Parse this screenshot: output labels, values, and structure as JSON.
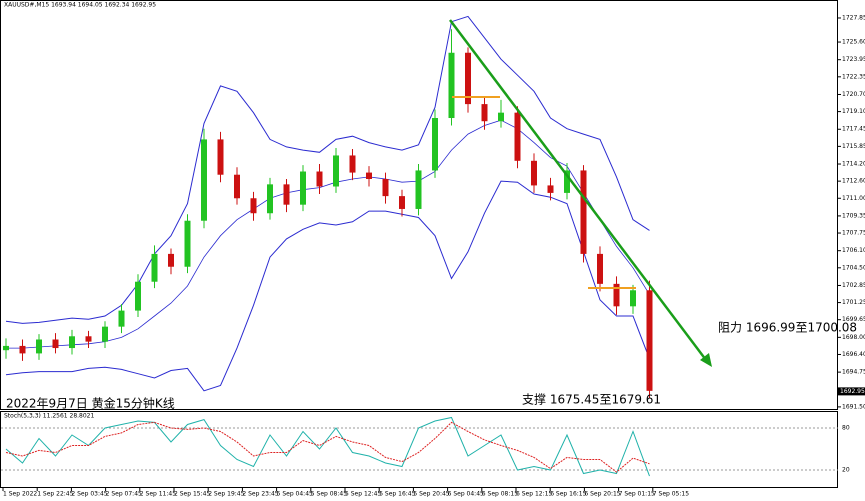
{
  "chart_data": {
    "type": "candlestick",
    "header": "XAUUSD#,M15  1693.94 1694.05 1692.34 1692.95",
    "caption": "2022年9月7日 黄金15分钟K线",
    "resistance": "阻力 1696.99至1700.08",
    "support": "支撑 1675.45至1679.61",
    "x_labels": [
      "1 Sep 2022",
      "1 Sep 22:45",
      "2 Sep 03:45",
      "2 Sep 07:45",
      "2 Sep 11:45",
      "2 Sep 15:45",
      "2 Sep 19:45",
      "2 Sep 23:45",
      "5 Sep 04:45",
      "5 Sep 08:45",
      "5 Sep 12:45",
      "5 Sep 16:45",
      "5 Sep 20:45",
      "6 Sep 04:45",
      "6 Sep 08:15",
      "6 Sep 12:15",
      "6 Sep 16:15",
      "6 Sep 20:15",
      "7 Sep 01:15",
      "7 Sep 05:15"
    ],
    "open": [
      1696.8,
      1697.2,
      1696.5,
      1697.8,
      1697.0,
      1698.1,
      1697.6,
      1699.0,
      1700.5,
      1703.2,
      1705.8,
      1704.6,
      1708.9,
      1716.5,
      1713.2,
      1711.0,
      1709.6,
      1712.3,
      1710.4,
      1713.5,
      1712.1,
      1715.0,
      1713.4,
      1712.8,
      1711.2,
      1710.0,
      1713.6,
      1718.5,
      1724.6,
      1719.8,
      1718.2,
      1719.0,
      1714.5,
      1712.2,
      1711.5,
      1713.6,
      1705.8,
      1703.0,
      1700.9,
      1702.4
    ],
    "high": [
      1697.9,
      1697.8,
      1698.3,
      1698.4,
      1698.7,
      1698.6,
      1699.5,
      1701.1,
      1703.9,
      1706.6,
      1706.3,
      1709.5,
      1717.5,
      1717.2,
      1713.9,
      1711.6,
      1712.9,
      1712.8,
      1714.1,
      1714.2,
      1715.7,
      1715.6,
      1714.0,
      1713.4,
      1711.8,
      1714.2,
      1719.3,
      1726.8,
      1725.1,
      1720.5,
      1720.2,
      1719.6,
      1715.2,
      1712.9,
      1714.3,
      1714.1,
      1706.5,
      1703.7,
      1702.9,
      1703.3
    ],
    "low": [
      1696.0,
      1695.8,
      1695.9,
      1696.5,
      1696.4,
      1697.0,
      1697.0,
      1698.4,
      1699.9,
      1702.6,
      1703.9,
      1704.0,
      1708.2,
      1712.5,
      1710.4,
      1708.9,
      1709.0,
      1709.7,
      1709.8,
      1711.4,
      1711.5,
      1712.7,
      1712.1,
      1710.5,
      1709.3,
      1709.4,
      1712.9,
      1717.8,
      1719.0,
      1717.4,
      1717.6,
      1713.8,
      1711.5,
      1710.8,
      1710.9,
      1705.0,
      1702.3,
      1700.1,
      1700.2,
      1692.3
    ],
    "close": [
      1697.2,
      1696.5,
      1697.8,
      1697.0,
      1698.1,
      1697.6,
      1699.0,
      1700.5,
      1703.2,
      1705.8,
      1704.6,
      1708.9,
      1716.5,
      1713.2,
      1711.0,
      1709.6,
      1712.3,
      1710.4,
      1713.5,
      1712.1,
      1715.0,
      1713.4,
      1712.8,
      1711.2,
      1710.0,
      1713.6,
      1718.5,
      1724.6,
      1719.8,
      1718.2,
      1719.0,
      1714.5,
      1712.2,
      1711.5,
      1713.6,
      1705.8,
      1703.0,
      1700.9,
      1702.4,
      1693.0
    ],
    "up_color": "#22c322",
    "down_color": "#cc1111",
    "bands": {
      "color": "#2b2bd0",
      "upper": [
        1699.5,
        1699.3,
        1699.4,
        1699.6,
        1699.8,
        1699.7,
        1700.0,
        1701.0,
        1703.0,
        1705.8,
        1707.5,
        1710.5,
        1718.0,
        1721.5,
        1721.0,
        1719.0,
        1716.5,
        1715.8,
        1715.5,
        1715.3,
        1716.5,
        1716.8,
        1716.2,
        1715.8,
        1715.5,
        1716.0,
        1719.5,
        1727.5,
        1728.0,
        1726.0,
        1724.0,
        1722.5,
        1721.0,
        1718.5,
        1717.5,
        1717.0,
        1716.5,
        1713.0,
        1709.0,
        1708.0
      ],
      "middle": [
        1697.0,
        1697.0,
        1697.1,
        1697.2,
        1697.3,
        1697.4,
        1697.6,
        1698.0,
        1698.8,
        1700.0,
        1701.2,
        1702.8,
        1705.5,
        1707.5,
        1709.0,
        1710.0,
        1711.0,
        1711.5,
        1711.8,
        1712.0,
        1712.5,
        1712.8,
        1713.0,
        1712.8,
        1712.5,
        1712.6,
        1713.5,
        1715.5,
        1717.0,
        1717.8,
        1718.3,
        1717.5,
        1716.2,
        1714.8,
        1714.0,
        1711.5,
        1709.0,
        1706.5,
        1704.5,
        1702.0
      ],
      "lower": [
        1694.5,
        1694.7,
        1694.8,
        1694.8,
        1694.8,
        1695.1,
        1695.2,
        1695.0,
        1694.6,
        1694.2,
        1694.9,
        1695.1,
        1693.0,
        1693.5,
        1697.0,
        1701.0,
        1705.5,
        1707.2,
        1708.1,
        1708.7,
        1708.5,
        1708.8,
        1709.8,
        1709.8,
        1709.5,
        1709.2,
        1707.5,
        1703.5,
        1706.0,
        1709.6,
        1712.6,
        1712.5,
        1711.4,
        1711.1,
        1710.5,
        1706.0,
        1701.5,
        1700.0,
        1700.0,
        1696.0
      ]
    },
    "ylim": [
      1691.21,
      1729.53
    ],
    "yticks": [
      1727.85,
      {
        "value": 1725.6,
        "label": "1725.60"
      },
      1723.95,
      1722.35,
      {
        "value": 1720.7,
        "label": "1720.70"
      },
      {
        "value": 1719.1,
        "label": "1719.10"
      },
      1717.45,
      1715.85,
      {
        "value": 1714.2,
        "label": "1714.20"
      },
      {
        "value": 1712.6,
        "label": "1712.60"
      },
      {
        "value": 1711,
        "label": "1711.00"
      },
      1709.35,
      1707.75,
      {
        "value": 1706.1,
        "label": "1706.10"
      },
      {
        "value": 1704.5,
        "label": "1704.50"
      },
      1702.85,
      1701.25,
      1699.65,
      {
        "value": 1698,
        "label": "1698.00"
      },
      {
        "value": 1696.4,
        "label": "1696.40"
      },
      1694.75,
      {
        "value": 1691.5,
        "label": "1691.50"
      }
    ],
    "last_price": 1692.95,
    "stoch": {
      "title": "Stoch(5,3,3) 11.2561 28.8021",
      "k_color": "#20b2aa",
      "d_color": "#dd2222",
      "k": [
        50,
        30,
        65,
        40,
        70,
        55,
        80,
        85,
        90,
        88,
        60,
        85,
        92,
        55,
        35,
        25,
        70,
        40,
        75,
        50,
        80,
        45,
        40,
        30,
        25,
        80,
        90,
        95,
        40,
        55,
        70,
        20,
        25,
        20,
        70,
        15,
        20,
        15,
        75,
        11.2561
      ],
      "d": [
        45,
        40,
        48,
        45,
        55,
        55,
        68,
        73,
        85,
        88,
        80,
        78,
        80,
        75,
        60,
        40,
        45,
        45,
        62,
        55,
        68,
        60,
        55,
        38,
        32,
        45,
        65,
        88,
        75,
        63,
        55,
        48,
        38,
        22,
        38,
        35,
        35,
        17,
        37,
        28.8021
      ],
      "ylim": [
        0,
        100
      ],
      "yticks": [
        80,
        20
      ]
    }
  }
}
